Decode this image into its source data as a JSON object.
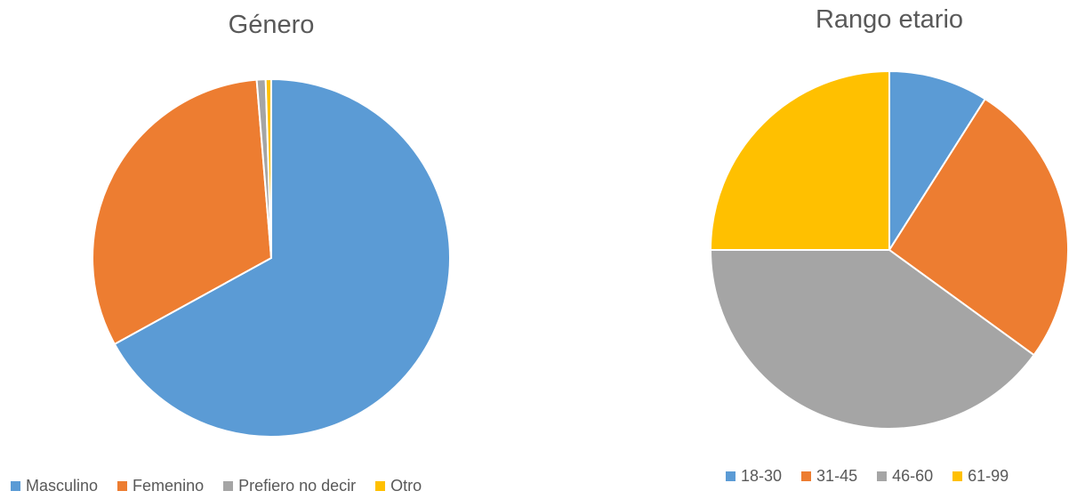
{
  "chart_data": [
    {
      "type": "pie",
      "title": "Género",
      "categories": [
        "Masculino",
        "Femenino",
        "Prefiero no decir",
        "Otro"
      ],
      "values": [
        67.0,
        31.7,
        0.8,
        0.5
      ],
      "colors": [
        "#5B9BD5",
        "#ED7D31",
        "#A5A5A5",
        "#FFC000"
      ],
      "legend_position": "bottom",
      "start_angle_deg": 0,
      "direction": "clockwise"
    },
    {
      "type": "pie",
      "title": "Rango etario",
      "categories": [
        "18-30",
        "31-45",
        "46-60",
        "61-99"
      ],
      "values": [
        9,
        26,
        40,
        25
      ],
      "colors": [
        "#5B9BD5",
        "#ED7D31",
        "#A5A5A5",
        "#FFC000"
      ],
      "legend_position": "bottom",
      "start_angle_deg": 0,
      "direction": "clockwise"
    }
  ]
}
